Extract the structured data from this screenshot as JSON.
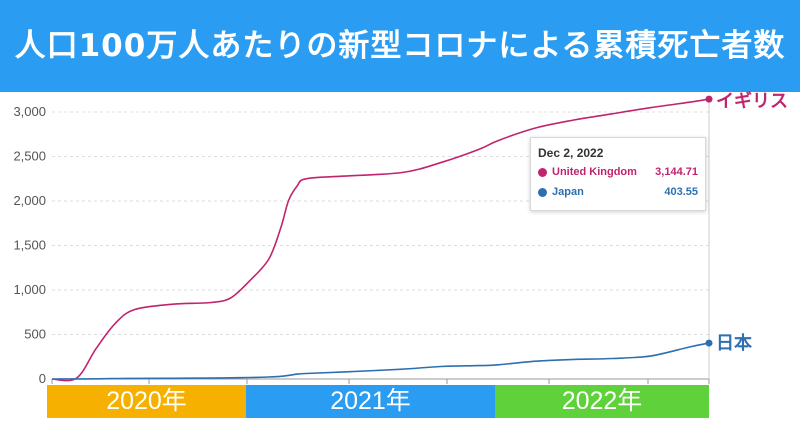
{
  "header": {
    "title": "人口100万人あたりの新型コロナによる累積死亡者数"
  },
  "tooltip": {
    "date": "Dec 2, 2022",
    "rows": [
      {
        "name": "United Kingdom",
        "value": "3,144.71",
        "color": "#c0246e"
      },
      {
        "name": "Japan",
        "value": "403.55",
        "color": "#2e6fb0"
      }
    ]
  },
  "year_bands": [
    {
      "label": "2020年",
      "color": "#f6b000"
    },
    {
      "label": "2021年",
      "color": "#2a9cf2"
    },
    {
      "label": "2022年",
      "color": "#5fd13a"
    }
  ],
  "chart_data": {
    "type": "line",
    "ylim": [
      0,
      3000
    ],
    "yticks": [
      "0",
      "500",
      "1,000",
      "1,500",
      "2,000",
      "2,500",
      "3,000"
    ],
    "grid": true,
    "x": [
      "2020-01-22",
      "2020-03-01",
      "2020-04-01",
      "2020-05-01",
      "2020-06-01",
      "2020-08-01",
      "2020-10-01",
      "2020-11-01",
      "2020-12-01",
      "2021-01-01",
      "2021-01-20",
      "2021-02-01",
      "2021-02-15",
      "2021-03-01",
      "2021-05-01",
      "2021-08-01",
      "2021-10-01",
      "2021-12-01",
      "2022-01-01",
      "2022-03-01",
      "2022-05-01",
      "2022-07-01",
      "2022-09-01",
      "2022-11-01",
      "2022-12-02"
    ],
    "series": [
      {
        "name": "イギリス",
        "color": "#c0246e",
        "values": [
          0,
          10,
          340,
          620,
          780,
          840,
          860,
          910,
          1100,
          1350,
          1700,
          2000,
          2170,
          2250,
          2280,
          2320,
          2430,
          2580,
          2680,
          2820,
          2910,
          2980,
          3050,
          3110,
          3144.71
        ]
      },
      {
        "name": "日本",
        "color": "#2e6fb0",
        "values": [
          0,
          1,
          2,
          5,
          7,
          8,
          10,
          14,
          17,
          22,
          30,
          40,
          55,
          62,
          80,
          110,
          140,
          150,
          160,
          200,
          220,
          230,
          260,
          360,
          403.55
        ]
      }
    ]
  }
}
